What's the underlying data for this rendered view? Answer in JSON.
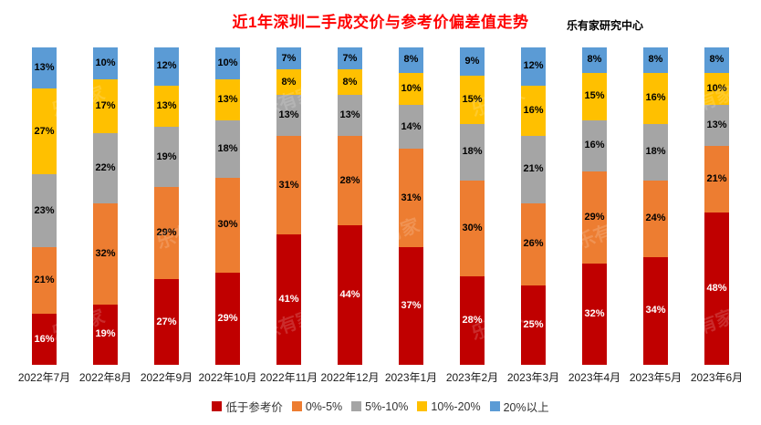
{
  "header": {
    "title": "近1年深圳二手成交价与参考价偏差值走势",
    "source": "乐有家研究中心"
  },
  "watermark": {
    "text": "乐有家"
  },
  "chart_data": {
    "type": "bar",
    "stacked": true,
    "percent_stacked": true,
    "title": "近1年深圳二手成交价与参考价偏差值走势",
    "categories": [
      "2022年7月",
      "2022年8月",
      "2022年9月",
      "2022年10月",
      "2022年11月",
      "2022年12月",
      "2023年1月",
      "2023年2月",
      "2023年3月",
      "2023年4月",
      "2023年5月",
      "2023年6月"
    ],
    "series": [
      {
        "name": "低于参考价",
        "color": "#C00000",
        "label_color": "#FFFFFF",
        "values": [
          16,
          19,
          27,
          29,
          41,
          44,
          37,
          28,
          25,
          32,
          34,
          48
        ]
      },
      {
        "name": "0%-5%",
        "color": "#ED7D31",
        "label_color": "#000000",
        "values": [
          21,
          32,
          29,
          30,
          31,
          28,
          31,
          30,
          26,
          29,
          24,
          21
        ]
      },
      {
        "name": "5%-10%",
        "color": "#A5A5A5",
        "label_color": "#000000",
        "values": [
          23,
          22,
          19,
          18,
          13,
          13,
          14,
          18,
          21,
          16,
          18,
          13
        ]
      },
      {
        "name": "10%-20%",
        "color": "#FFC000",
        "label_color": "#000000",
        "values": [
          27,
          17,
          13,
          13,
          8,
          8,
          10,
          15,
          16,
          15,
          16,
          10
        ]
      },
      {
        "name": "20%以上",
        "color": "#5B9BD5",
        "label_color": "#000000",
        "values": [
          13,
          10,
          12,
          10,
          7,
          7,
          8,
          9,
          12,
          8,
          8,
          8
        ]
      }
    ],
    "value_suffix": "%",
    "ylim": [
      0,
      100
    ],
    "grid": false,
    "legend_position": "bottom",
    "data_labels": "center"
  }
}
